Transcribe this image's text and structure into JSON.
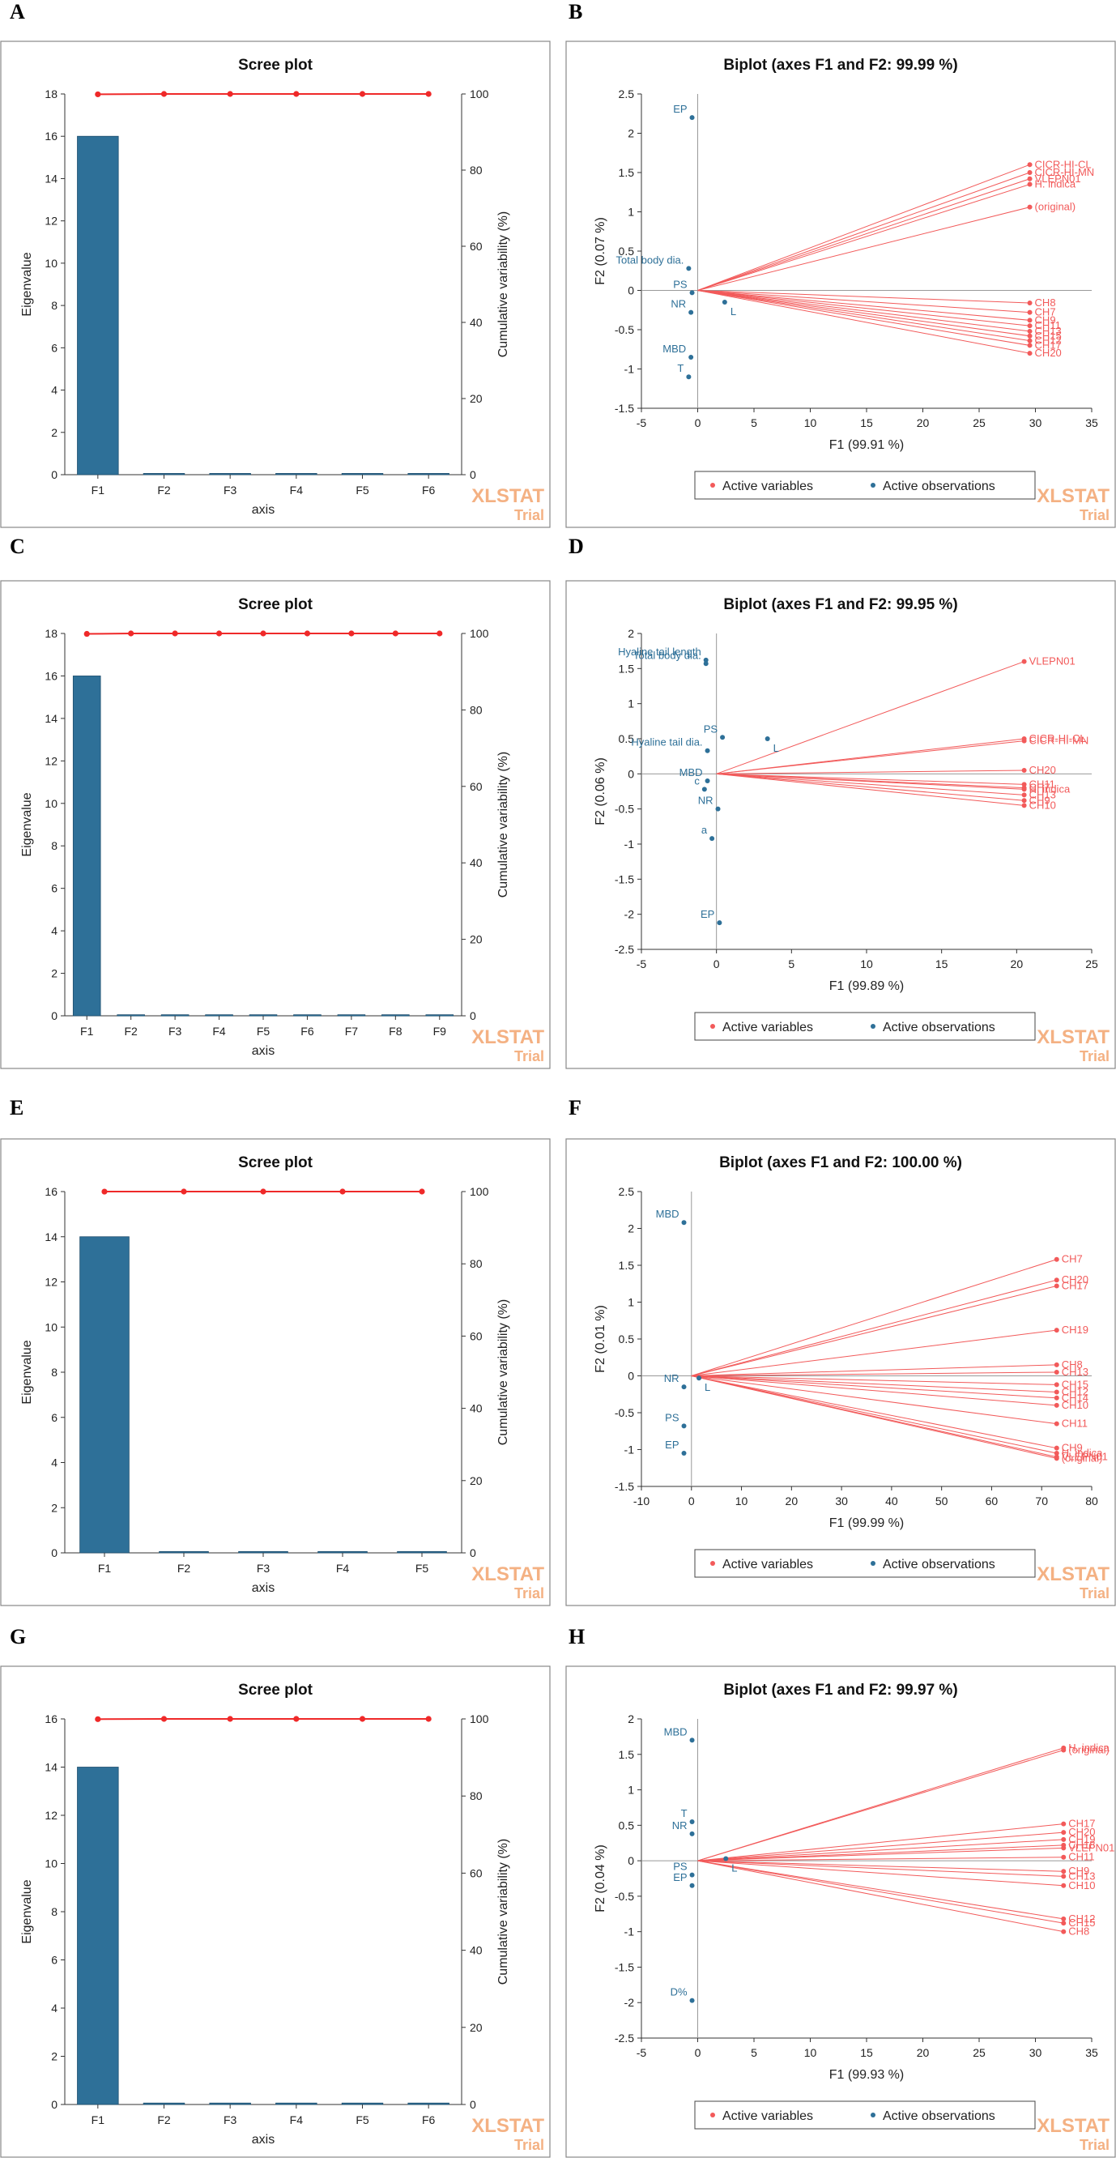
{
  "panel_letters": [
    "A",
    "B",
    "C",
    "D",
    "E",
    "F",
    "G",
    "H"
  ],
  "colors": {
    "bar": "#2e7098",
    "line": "#ef2929",
    "obs": "#2e7098",
    "var": "#f25a5a",
    "axis": "#333333",
    "wm": "#f4b183"
  },
  "watermark": {
    "main": "XLSTAT",
    "sub": "Trial"
  },
  "chart_data": [
    {
      "type": "bar",
      "panel": "A",
      "title": "Scree plot",
      "xlabel": "axis",
      "ylabel": "Eigenvalue",
      "y2label": "Cumulative variability (%)",
      "categories": [
        "F1",
        "F2",
        "F3",
        "F4",
        "F5",
        "F6"
      ],
      "values": [
        16,
        0.06,
        0.06,
        0.06,
        0.06,
        0.06
      ],
      "cumulative": [
        99.91,
        100,
        100,
        100,
        100,
        100
      ],
      "ylim": [
        0,
        18
      ],
      "yticks": [
        0,
        2,
        4,
        6,
        8,
        10,
        12,
        14,
        16,
        18
      ],
      "y2lim": [
        0,
        100
      ],
      "y2ticks": [
        0,
        20,
        40,
        60,
        80,
        100
      ]
    },
    {
      "type": "scatter",
      "panel": "B",
      "title": "Biplot (axes F1 and F2: 99.99 %)",
      "xlabel": "F1 (99.91 %)",
      "ylabel": "F2 (0.07 %)",
      "xlim": [
        -5,
        35
      ],
      "xticks": [
        -5,
        0,
        5,
        10,
        15,
        20,
        25,
        30,
        35
      ],
      "ylim": [
        -1.5,
        2.5
      ],
      "yticks": [
        -1.5,
        -1,
        -0.5,
        0,
        0.5,
        1,
        1.5,
        2,
        2.5
      ],
      "legend": [
        "Active variables",
        "Active observations"
      ],
      "observations": [
        {
          "label": "EP",
          "x": -0.5,
          "y": 2.2
        },
        {
          "label": "Total body dia.",
          "x": -0.8,
          "y": 0.28
        },
        {
          "label": "L",
          "x": 2.4,
          "y": -0.15
        },
        {
          "label": "PS",
          "x": -0.5,
          "y": -0.03
        },
        {
          "label": "NR",
          "x": -0.6,
          "y": -0.28
        },
        {
          "label": "MBD",
          "x": -0.6,
          "y": -0.85
        },
        {
          "label": "T",
          "x": -0.8,
          "y": -1.1
        }
      ],
      "variables": [
        {
          "label": "CICR-HI-CL",
          "x": 29.5,
          "y": 1.6
        },
        {
          "label": "CICR-HI-MN",
          "x": 29.5,
          "y": 1.5
        },
        {
          "label": "VLEPN01",
          "x": 29.5,
          "y": 1.42
        },
        {
          "label": "H. indica",
          "x": 29.5,
          "y": 1.35
        },
        {
          "label": "(original)",
          "x": 29.5,
          "y": 1.06
        },
        {
          "label": "CH8",
          "x": 29.5,
          "y": -0.16
        },
        {
          "label": "CH7",
          "x": 29.5,
          "y": -0.28
        },
        {
          "label": "CH9",
          "x": 29.5,
          "y": -0.38
        },
        {
          "label": "CH11",
          "x": 29.5,
          "y": -0.45
        },
        {
          "label": "CH13",
          "x": 29.5,
          "y": -0.52
        },
        {
          "label": "CH15",
          "x": 29.5,
          "y": -0.58
        },
        {
          "label": "CH12",
          "x": 29.5,
          "y": -0.64
        },
        {
          "label": "CH17",
          "x": 29.5,
          "y": -0.7
        },
        {
          "label": "CH20",
          "x": 29.5,
          "y": -0.8
        }
      ]
    },
    {
      "type": "bar",
      "panel": "C",
      "title": "Scree plot",
      "xlabel": "axis",
      "ylabel": "Eigenvalue",
      "y2label": "Cumulative variability (%)",
      "categories": [
        "F1",
        "F2",
        "F3",
        "F4",
        "F5",
        "F6",
        "F7",
        "F8",
        "F9"
      ],
      "values": [
        16,
        0.05,
        0.05,
        0.05,
        0.05,
        0.05,
        0.05,
        0.05,
        0.05
      ],
      "cumulative": [
        99.89,
        100,
        100,
        100,
        100,
        100,
        100,
        100,
        100
      ],
      "ylim": [
        0,
        18
      ],
      "yticks": [
        0,
        2,
        4,
        6,
        8,
        10,
        12,
        14,
        16,
        18
      ],
      "y2lim": [
        0,
        100
      ],
      "y2ticks": [
        0,
        20,
        40,
        60,
        80,
        100
      ]
    },
    {
      "type": "scatter",
      "panel": "D",
      "title": "Biplot (axes F1 and F2: 99.95 %)",
      "xlabel": "F1 (99.89 %)",
      "ylabel": "F2 (0.06 %)",
      "xlim": [
        -5,
        25
      ],
      "xticks": [
        -5,
        0,
        5,
        10,
        15,
        20,
        25
      ],
      "ylim": [
        -2.5,
        2
      ],
      "yticks": [
        -2.5,
        -2,
        -1.5,
        -1,
        -0.5,
        0,
        0.5,
        1,
        1.5,
        2
      ],
      "legend": [
        "Active variables",
        "Active observations"
      ],
      "observations": [
        {
          "label": "Hyaline tail length",
          "x": -0.7,
          "y": 1.62
        },
        {
          "label": "Total body dia.",
          "x": -0.7,
          "y": 1.57
        },
        {
          "label": "PS",
          "x": 0.4,
          "y": 0.52
        },
        {
          "label": "L",
          "x": 3.4,
          "y": 0.5
        },
        {
          "label": "Hyaline tail dia.",
          "x": -0.6,
          "y": 0.33
        },
        {
          "label": "MBD",
          "x": -0.6,
          "y": -0.1
        },
        {
          "label": "c",
          "x": -0.8,
          "y": -0.22
        },
        {
          "label": "NR",
          "x": 0.1,
          "y": -0.5
        },
        {
          "label": "a",
          "x": -0.3,
          "y": -0.92
        },
        {
          "label": "EP",
          "x": 0.2,
          "y": -2.12
        }
      ],
      "variables": [
        {
          "label": "VLEPN01",
          "x": 20.5,
          "y": 1.6
        },
        {
          "label": "CICR-HI-CL",
          "x": 20.5,
          "y": 0.5
        },
        {
          "label": "CICR-HI-MN",
          "x": 20.5,
          "y": 0.47
        },
        {
          "label": "CH20",
          "x": 20.5,
          "y": 0.05
        },
        {
          "label": "CH11",
          "x": 20.5,
          "y": -0.15
        },
        {
          "label": "H. indica",
          "x": 20.5,
          "y": -0.22
        },
        {
          "label": "CH7",
          "x": 20.5,
          "y": -0.2
        },
        {
          "label": "CH13",
          "x": 20.5,
          "y": -0.3
        },
        {
          "label": "CH9",
          "x": 20.5,
          "y": -0.38
        },
        {
          "label": "CH10",
          "x": 20.5,
          "y": -0.45
        }
      ]
    },
    {
      "type": "bar",
      "panel": "E",
      "title": "Scree plot",
      "xlabel": "axis",
      "ylabel": "Eigenvalue",
      "y2label": "Cumulative variability (%)",
      "categories": [
        "F1",
        "F2",
        "F3",
        "F4",
        "F5"
      ],
      "values": [
        14,
        0.06,
        0.06,
        0.06,
        0.06
      ],
      "cumulative": [
        99.99,
        100,
        100,
        100,
        100
      ],
      "ylim": [
        0,
        16
      ],
      "yticks": [
        0,
        2,
        4,
        6,
        8,
        10,
        12,
        14,
        16
      ],
      "y2lim": [
        0,
        100
      ],
      "y2ticks": [
        0,
        20,
        40,
        60,
        80,
        100
      ]
    },
    {
      "type": "scatter",
      "panel": "F",
      "title": "Biplot (axes F1 and F2: 100.00 %)",
      "xlabel": "F1 (99.99 %)",
      "ylabel": "F2 (0.01 %)",
      "xlim": [
        -10,
        80
      ],
      "xticks": [
        -10,
        0,
        10,
        20,
        30,
        40,
        50,
        60,
        70,
        80
      ],
      "ylim": [
        -1.5,
        2.5
      ],
      "yticks": [
        -1.5,
        -1,
        -0.5,
        0,
        0.5,
        1,
        1.5,
        2,
        2.5
      ],
      "legend": [
        "Active variables",
        "Active observations"
      ],
      "observations": [
        {
          "label": "MBD",
          "x": -1.5,
          "y": 2.08
        },
        {
          "label": "L",
          "x": 1.5,
          "y": -0.03
        },
        {
          "label": "NR",
          "x": -1.5,
          "y": -0.15
        },
        {
          "label": "PS",
          "x": -1.5,
          "y": -0.68
        },
        {
          "label": "EP",
          "x": -1.5,
          "y": -1.05
        }
      ],
      "variables": [
        {
          "label": "CH7",
          "x": 73,
          "y": 1.58
        },
        {
          "label": "CH20",
          "x": 73,
          "y": 1.3
        },
        {
          "label": "CH17",
          "x": 73,
          "y": 1.22
        },
        {
          "label": "CH19",
          "x": 73,
          "y": 0.62
        },
        {
          "label": "CH8",
          "x": 73,
          "y": 0.15
        },
        {
          "label": "CH13",
          "x": 73,
          "y": 0.05
        },
        {
          "label": "CH15",
          "x": 73,
          "y": -0.12
        },
        {
          "label": "CH12",
          "x": 73,
          "y": -0.22
        },
        {
          "label": "CH14",
          "x": 73,
          "y": -0.3
        },
        {
          "label": "CH10",
          "x": 73,
          "y": -0.4
        },
        {
          "label": "CH11",
          "x": 73,
          "y": -0.65
        },
        {
          "label": "CH9",
          "x": 73,
          "y": -0.98
        },
        {
          "label": "H. indica",
          "x": 73,
          "y": -1.05
        },
        {
          "label": "VLEPN01",
          "x": 73,
          "y": -1.1
        },
        {
          "label": "(original)",
          "x": 73,
          "y": -1.12
        }
      ]
    },
    {
      "type": "bar",
      "panel": "G",
      "title": "Scree plot",
      "xlabel": "axis",
      "ylabel": "Eigenvalue",
      "y2label": "Cumulative variability (%)",
      "categories": [
        "F1",
        "F2",
        "F3",
        "F4",
        "F5",
        "F6"
      ],
      "values": [
        14,
        0.06,
        0.06,
        0.06,
        0.06,
        0.06
      ],
      "cumulative": [
        99.93,
        100,
        100,
        100,
        100,
        100
      ],
      "ylim": [
        0,
        16
      ],
      "yticks": [
        0,
        2,
        4,
        6,
        8,
        10,
        12,
        14,
        16
      ],
      "y2lim": [
        0,
        100
      ],
      "y2ticks": [
        0,
        20,
        40,
        60,
        80,
        100
      ]
    },
    {
      "type": "scatter",
      "panel": "H",
      "title": "Biplot (axes F1 and F2: 99.97 %)",
      "xlabel": "F1 (99.93 %)",
      "ylabel": "F2 (0.04 %)",
      "xlim": [
        -5,
        35
      ],
      "xticks": [
        -5,
        0,
        5,
        10,
        15,
        20,
        25,
        30,
        35
      ],
      "ylim": [
        -2.5,
        2
      ],
      "yticks": [
        -2.5,
        -2,
        -1.5,
        -1,
        -0.5,
        0,
        0.5,
        1,
        1.5,
        2
      ],
      "legend": [
        "Active variables",
        "Active observations"
      ],
      "observations": [
        {
          "label": "MBD",
          "x": -0.5,
          "y": 1.7
        },
        {
          "label": "T",
          "x": -0.5,
          "y": 0.55
        },
        {
          "label": "NR",
          "x": -0.5,
          "y": 0.38
        },
        {
          "label": "L",
          "x": 2.5,
          "y": 0.03
        },
        {
          "label": "PS",
          "x": -0.5,
          "y": -0.2
        },
        {
          "label": "EP",
          "x": -0.5,
          "y": -0.35
        },
        {
          "label": "D%",
          "x": -0.5,
          "y": -1.97
        }
      ],
      "variables": [
        {
          "label": "H. indica",
          "x": 32.5,
          "y": 1.59
        },
        {
          "label": "(original)",
          "x": 32.5,
          "y": 1.56
        },
        {
          "label": "CH17",
          "x": 32.5,
          "y": 0.52
        },
        {
          "label": "CH20",
          "x": 32.5,
          "y": 0.4
        },
        {
          "label": "CH19",
          "x": 32.5,
          "y": 0.3
        },
        {
          "label": "CH18",
          "x": 32.5,
          "y": 0.22
        },
        {
          "label": "VLEPN01",
          "x": 32.5,
          "y": 0.18
        },
        {
          "label": "CH11",
          "x": 32.5,
          "y": 0.05
        },
        {
          "label": "CH9",
          "x": 32.5,
          "y": -0.15
        },
        {
          "label": "CH13",
          "x": 32.5,
          "y": -0.22
        },
        {
          "label": "CH10",
          "x": 32.5,
          "y": -0.35
        },
        {
          "label": "CH12",
          "x": 32.5,
          "y": -0.82
        },
        {
          "label": "CH15",
          "x": 32.5,
          "y": -0.88
        },
        {
          "label": "CH8",
          "x": 32.5,
          "y": -1.0
        }
      ]
    }
  ]
}
